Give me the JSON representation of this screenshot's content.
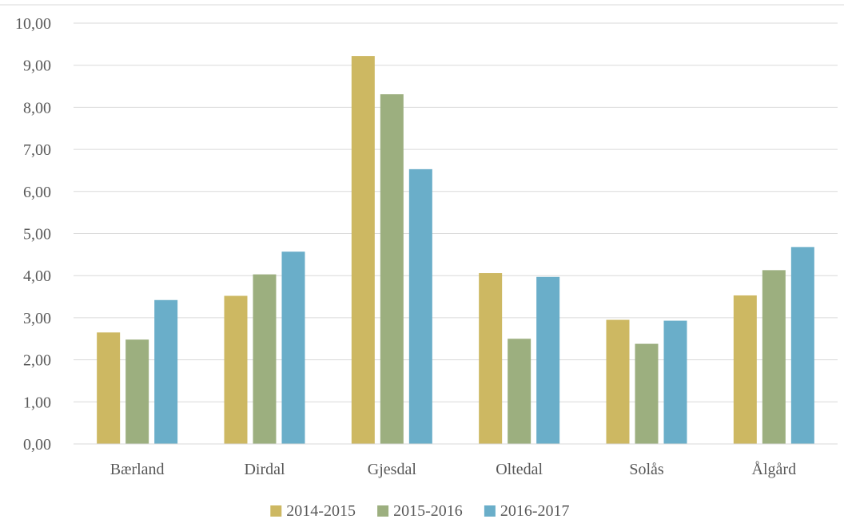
{
  "chart_data": {
    "type": "bar",
    "title": "",
    "xlabel": "",
    "ylabel": "",
    "categories": [
      "Bærland",
      "Dirdal",
      "Gjesdal",
      "Oltedal",
      "Solås",
      "Ålgård"
    ],
    "series": [
      {
        "name": "2014-2015",
        "color": "#CDB862",
        "values": [
          2.65,
          3.52,
          9.22,
          4.06,
          2.95,
          3.53
        ]
      },
      {
        "name": "2015-2016",
        "color": "#9CAF7F",
        "values": [
          2.48,
          4.03,
          8.31,
          2.5,
          2.38,
          4.13
        ]
      },
      {
        "name": "2016-2017",
        "color": "#6AAEC9",
        "values": [
          3.42,
          4.57,
          6.53,
          3.97,
          2.93,
          4.68
        ]
      }
    ],
    "ylim": [
      0,
      10
    ],
    "yticks": [
      "0,00",
      "1,00",
      "2,00",
      "3,00",
      "4,00",
      "5,00",
      "6,00",
      "7,00",
      "8,00",
      "9,00",
      "10,00"
    ],
    "grid": true,
    "legend_position": "bottom"
  }
}
